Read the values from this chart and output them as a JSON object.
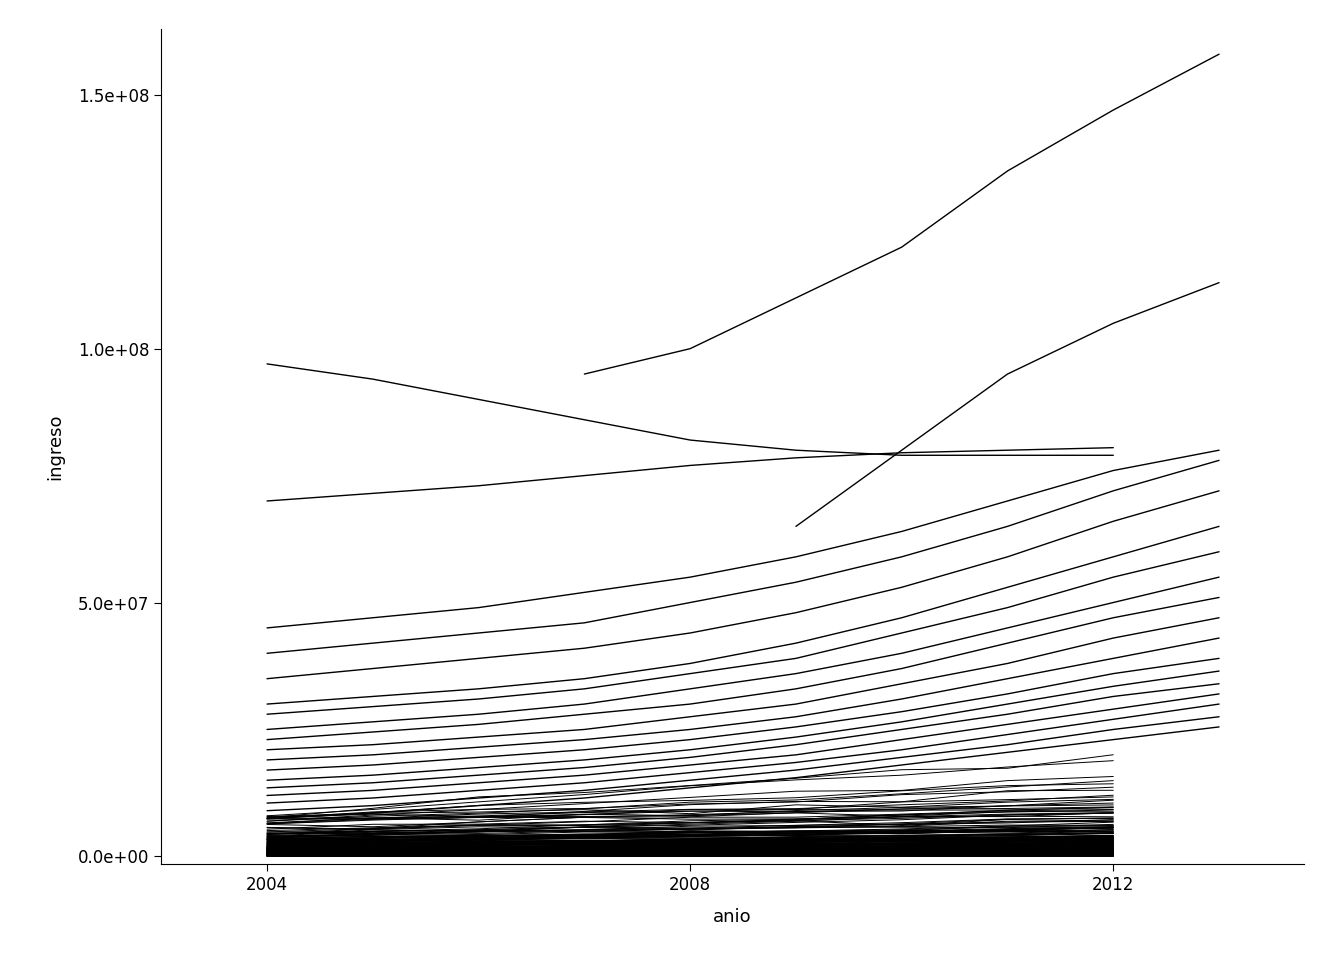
{
  "xlabel": "anio",
  "ylabel": "ingreso",
  "xlim": [
    2003.0,
    2013.8
  ],
  "ylim": [
    -1500000,
    163000000
  ],
  "xticks": [
    2004,
    2008,
    2012
  ],
  "yticks": [
    0,
    50000000,
    100000000,
    150000000
  ],
  "background_color": "#ffffff",
  "line_color": "#000000",
  "line_width": 0.7,
  "prominent_lines": [
    {
      "years": [
        2007,
        2008,
        2009,
        2010,
        2011,
        2012,
        2013
      ],
      "values": [
        95000000.0,
        100000000.0,
        110000000.0,
        120000000.0,
        135000000.0,
        147000000.0,
        158000000.0
      ]
    },
    {
      "years": [
        2009,
        2010,
        2011,
        2012,
        2013
      ],
      "values": [
        65000000.0,
        80000000.0,
        95000000.0,
        105000000.0,
        113000000.0
      ]
    },
    {
      "years": [
        2004,
        2005,
        2006,
        2007,
        2008,
        2009,
        2010,
        2011,
        2012
      ],
      "values": [
        97000000.0,
        94000000.0,
        90000000.0,
        86000000.0,
        82000000.0,
        80000000.0,
        79000000.0,
        79000000.0,
        79000000.0
      ]
    },
    {
      "years": [
        2004,
        2005,
        2006,
        2007,
        2008,
        2009,
        2010,
        2011,
        2012
      ],
      "values": [
        70000000.0,
        71500000.0,
        73000000.0,
        75000000.0,
        77000000.0,
        78500000.0,
        79500000.0,
        80000000.0,
        80500000.0
      ]
    },
    {
      "years": [
        2004,
        2005,
        2006,
        2007,
        2008,
        2009,
        2010,
        2011,
        2012,
        2013
      ],
      "values": [
        45000000.0,
        47000000.0,
        49000000.0,
        52000000.0,
        55000000.0,
        59000000.0,
        64000000.0,
        70000000.0,
        76000000.0,
        80000000.0
      ]
    },
    {
      "years": [
        2004,
        2005,
        2006,
        2007,
        2008,
        2009,
        2010,
        2011,
        2012,
        2013
      ],
      "values": [
        40000000.0,
        42000000.0,
        44000000.0,
        46000000.0,
        50000000.0,
        54000000.0,
        59000000.0,
        65000000.0,
        72000000.0,
        78000000.0
      ]
    },
    {
      "years": [
        2004,
        2005,
        2006,
        2007,
        2008,
        2009,
        2010,
        2011,
        2012,
        2013
      ],
      "values": [
        35000000.0,
        37000000.0,
        39000000.0,
        41000000.0,
        44000000.0,
        48000000.0,
        53000000.0,
        59000000.0,
        66000000.0,
        72000000.0
      ]
    },
    {
      "years": [
        2004,
        2005,
        2006,
        2007,
        2008,
        2009,
        2010,
        2011,
        2012,
        2013
      ],
      "values": [
        30000000.0,
        31500000.0,
        33000000.0,
        35000000.0,
        38000000.0,
        42000000.0,
        47000000.0,
        53000000.0,
        59000000.0,
        65000000.0
      ]
    },
    {
      "years": [
        2004,
        2005,
        2006,
        2007,
        2008,
        2009,
        2010,
        2011,
        2012,
        2013
      ],
      "values": [
        28000000.0,
        29500000.0,
        31000000.0,
        33000000.0,
        36000000.0,
        39000000.0,
        44000000.0,
        49000000.0,
        55000000.0,
        60000000.0
      ]
    },
    {
      "years": [
        2004,
        2005,
        2006,
        2007,
        2008,
        2009,
        2010,
        2011,
        2012,
        2013
      ],
      "values": [
        25000000.0,
        26500000.0,
        28000000.0,
        30000000.0,
        33000000.0,
        36000000.0,
        40000000.0,
        45000000.0,
        50000000.0,
        55000000.0
      ]
    },
    {
      "years": [
        2004,
        2005,
        2006,
        2007,
        2008,
        2009,
        2010,
        2011,
        2012,
        2013
      ],
      "values": [
        23000000.0,
        24500000.0,
        26000000.0,
        28000000.0,
        30000000.0,
        33000000.0,
        37000000.0,
        42000000.0,
        47000000.0,
        51000000.0
      ]
    },
    {
      "years": [
        2004,
        2005,
        2006,
        2007,
        2008,
        2009,
        2010,
        2011,
        2012,
        2013
      ],
      "values": [
        21000000.0,
        22000000.0,
        23500000.0,
        25000000.0,
        27500000.0,
        30000000.0,
        34000000.0,
        38000000.0,
        43000000.0,
        47000000.0
      ]
    },
    {
      "years": [
        2004,
        2005,
        2006,
        2007,
        2008,
        2009,
        2010,
        2011,
        2012,
        2013
      ],
      "values": [
        19000000.0,
        20000000.0,
        21500000.0,
        23000000.0,
        25000000.0,
        27500000.0,
        31000000.0,
        35000000.0,
        39000000.0,
        43000000.0
      ]
    },
    {
      "years": [
        2004,
        2005,
        2006,
        2007,
        2008,
        2009,
        2010,
        2011,
        2012,
        2013
      ],
      "values": [
        17000000.0,
        18000000.0,
        19500000.0,
        21000000.0,
        23000000.0,
        25500000.0,
        28500000.0,
        32000000.0,
        36000000.0,
        39000000.0
      ]
    },
    {
      "years": [
        2004,
        2005,
        2006,
        2007,
        2008,
        2009,
        2010,
        2011,
        2012,
        2013
      ],
      "values": [
        15000000.0,
        16000000.0,
        17500000.0,
        19000000.0,
        21000000.0,
        23500000.0,
        26500000.0,
        30000000.0,
        33500000.0,
        36500000.0
      ]
    },
    {
      "years": [
        2004,
        2005,
        2006,
        2007,
        2008,
        2009,
        2010,
        2011,
        2012,
        2013
      ],
      "values": [
        13500000.0,
        14500000.0,
        16000000.0,
        17500000.0,
        19500000.0,
        22000000.0,
        25000000.0,
        28000000.0,
        31500000.0,
        34000000.0
      ]
    },
    {
      "years": [
        2004,
        2005,
        2006,
        2007,
        2008,
        2009,
        2010,
        2011,
        2012,
        2013
      ],
      "values": [
        12000000.0,
        13000000.0,
        14500000.0,
        16000000.0,
        18000000.0,
        20000000.0,
        23000000.0,
        26000000.0,
        29000000.0,
        32000000.0
      ]
    },
    {
      "years": [
        2004,
        2005,
        2006,
        2007,
        2008,
        2009,
        2010,
        2011,
        2012,
        2013
      ],
      "values": [
        10500000.0,
        11500000.0,
        13000000.0,
        14500000.0,
        16500000.0,
        18500000.0,
        21000000.0,
        24000000.0,
        27000000.0,
        30000000.0
      ]
    },
    {
      "years": [
        2004,
        2005,
        2006,
        2007,
        2008,
        2009,
        2010,
        2011,
        2012,
        2013
      ],
      "values": [
        9000000.0,
        10000000.0,
        11500000.0,
        13000000.0,
        15000000.0,
        17000000.0,
        19500000.0,
        22000000.0,
        25000000.0,
        27500000.0
      ]
    },
    {
      "years": [
        2004,
        2005,
        2006,
        2007,
        2008,
        2009,
        2010,
        2011,
        2012,
        2013
      ],
      "values": [
        7500000.0,
        8500000.0,
        10000000.0,
        11500000.0,
        13500000.0,
        15500000.0,
        18000000.0,
        20500000.0,
        23000000.0,
        25500000.0
      ]
    }
  ]
}
